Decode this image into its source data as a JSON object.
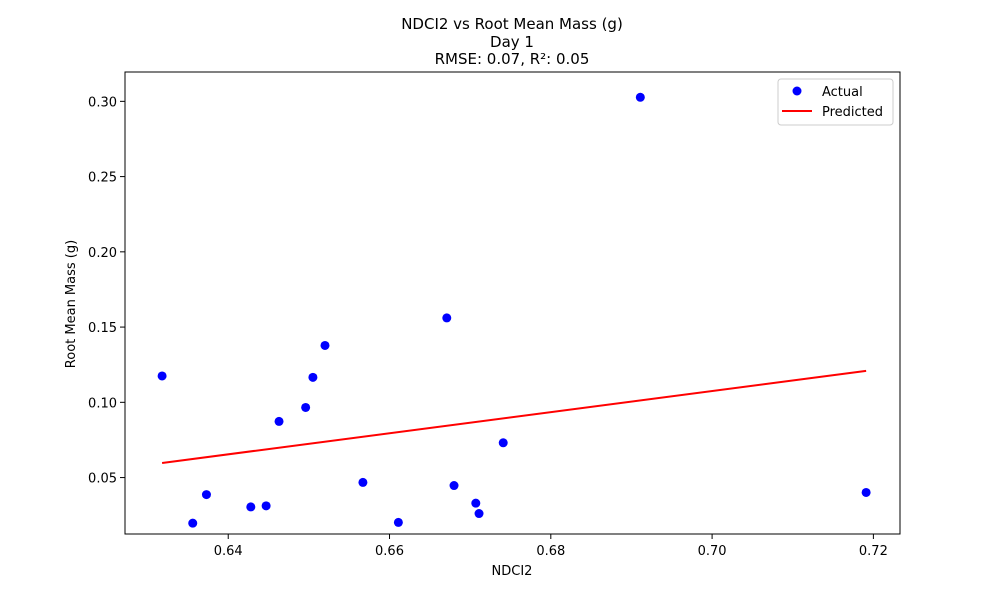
{
  "chart_data": {
    "type": "scatter",
    "title": "NDCI2 vs Root Mean Mass (g)",
    "subtitle": "Day 1",
    "subtitle2": "RMSE: 0.07, R²: 0.05",
    "xlabel": "NDCI2",
    "ylabel": "Root Mean Mass (g)",
    "xlim": [
      0.6272,
      0.7233
    ],
    "ylim": [
      0.0125,
      0.3195
    ],
    "xticks": [
      0.64,
      0.66,
      0.68,
      0.7,
      0.72
    ],
    "xtick_labels": [
      "0.64",
      "0.66",
      "0.68",
      "0.70",
      "0.72"
    ],
    "yticks": [
      0.05,
      0.1,
      0.15,
      0.2,
      0.25,
      0.3
    ],
    "ytick_labels": [
      "0.05",
      "0.10",
      "0.15",
      "0.20",
      "0.25",
      "0.30"
    ],
    "grid": false,
    "legend_position": "top-right",
    "series": [
      {
        "name": "Actual",
        "kind": "scatter",
        "color": "#0000ff",
        "points": [
          [
            0.6318,
            0.1175
          ],
          [
            0.6356,
            0.0197
          ],
          [
            0.6373,
            0.0387
          ],
          [
            0.6428,
            0.0305
          ],
          [
            0.6447,
            0.0312
          ],
          [
            0.6463,
            0.0873
          ],
          [
            0.6496,
            0.0966
          ],
          [
            0.6505,
            0.1166
          ],
          [
            0.652,
            0.1378
          ],
          [
            0.6567,
            0.0468
          ],
          [
            0.6611,
            0.0202
          ],
          [
            0.6671,
            0.1561
          ],
          [
            0.668,
            0.0447
          ],
          [
            0.6707,
            0.033
          ],
          [
            0.6711,
            0.0261
          ],
          [
            0.6741,
            0.0731
          ],
          [
            0.6911,
            0.3027
          ],
          [
            0.7191,
            0.0401
          ]
        ]
      },
      {
        "name": "Predicted",
        "kind": "line",
        "color": "#ff0000",
        "points": [
          [
            0.6318,
            0.0597
          ],
          [
            0.7191,
            0.1209
          ]
        ]
      }
    ]
  }
}
